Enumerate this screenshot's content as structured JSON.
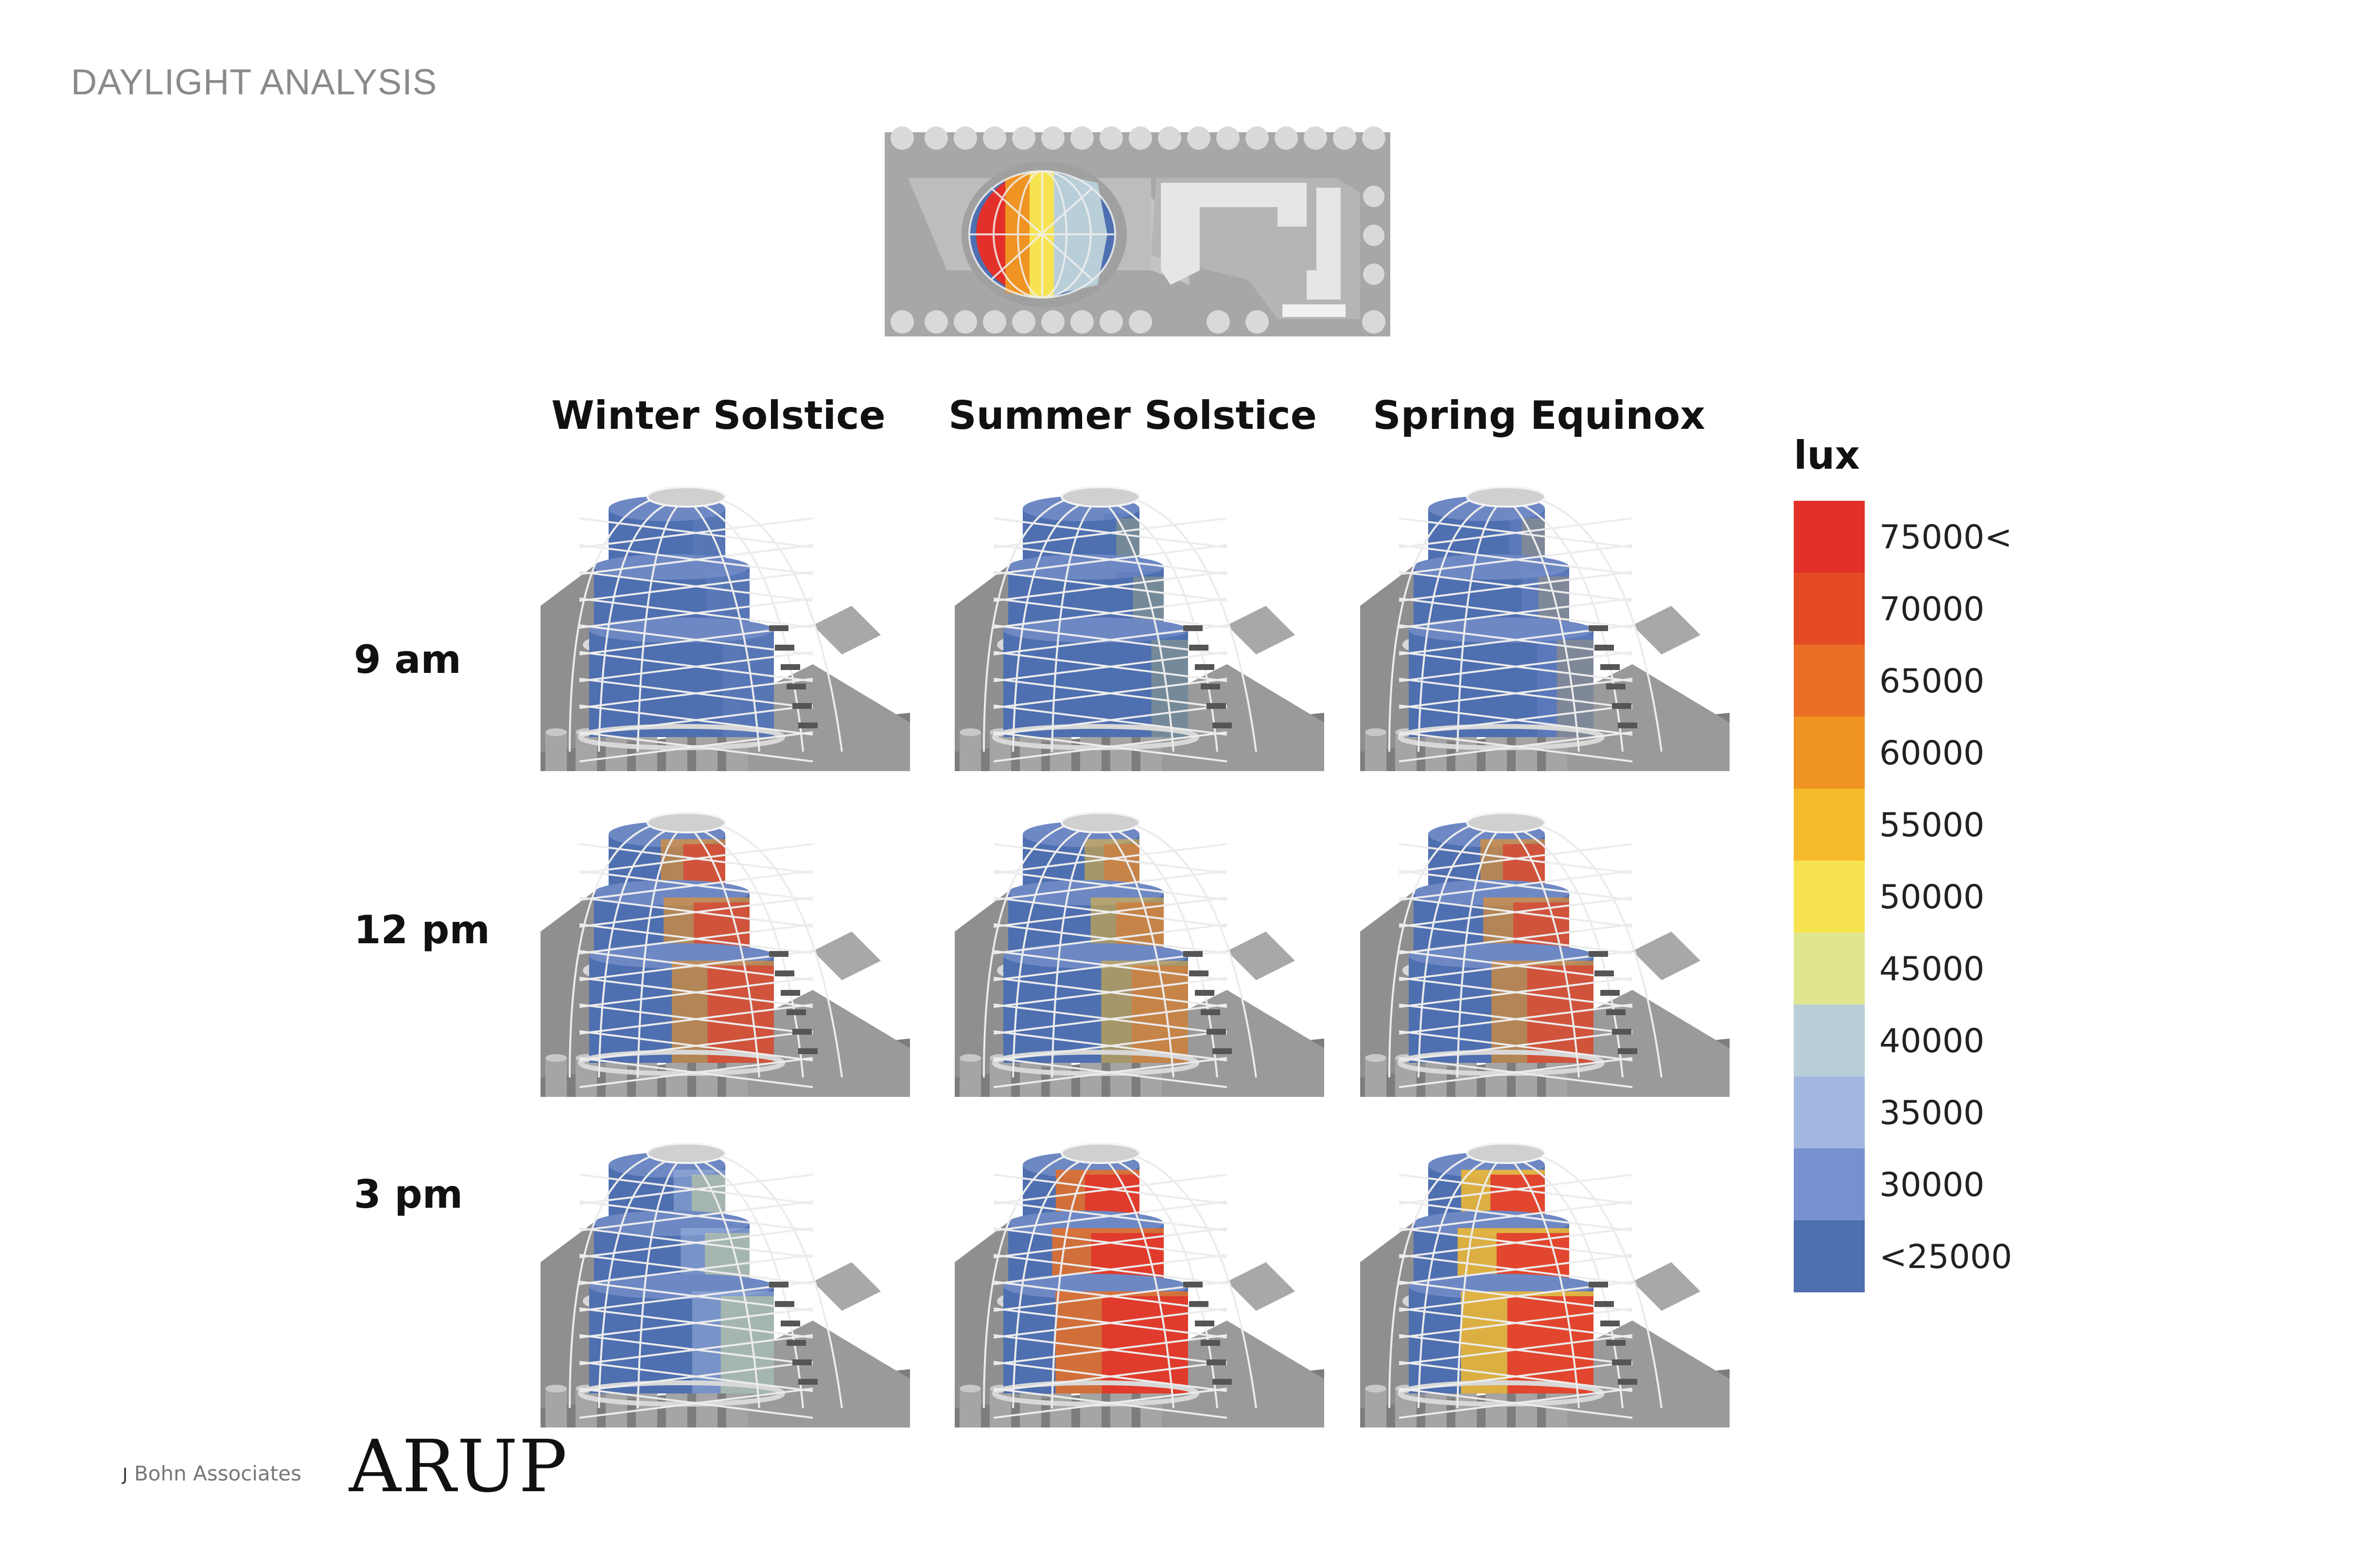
{
  "page_title": "DAYLIGHT ANALYSIS",
  "columns": [
    "Winter Solstice",
    "Summer Solstice",
    "Spring Equinox"
  ],
  "rows": [
    "9 am",
    "12 pm",
    "3 pm"
  ],
  "legend": {
    "unit": "lux",
    "steps": [
      {
        "label": "75000<",
        "color": "#e3302a"
      },
      {
        "label": "70000",
        "color": "#e44a23"
      },
      {
        "label": "65000",
        "color": "#ea6f24"
      },
      {
        "label": "60000",
        "color": "#ef9322"
      },
      {
        "label": "55000",
        "color": "#f5bb2c"
      },
      {
        "label": "50000",
        "color": "#f7e34f"
      },
      {
        "label": "45000",
        "color": "#e0e58f"
      },
      {
        "label": "40000",
        "color": "#b8ced8"
      },
      {
        "label": "35000",
        "color": "#a3b8e0"
      },
      {
        "label": "30000",
        "color": "#7790cf"
      },
      {
        "label": "<25000",
        "color": "#4e6fb0"
      }
    ]
  },
  "panels": [
    [
      {
        "hot": "#4e6fb0",
        "warm": "#7790cf",
        "intensity": 0.05
      },
      {
        "hot": "#f7e34f",
        "warm": "#4e6fb0",
        "intensity": 0.1
      },
      {
        "hot": "#f5bb2c",
        "warm": "#7790cf",
        "intensity": 0.1
      }
    ],
    [
      {
        "hot": "#e3302a",
        "warm": "#ef9322",
        "intensity": 0.55
      },
      {
        "hot": "#ea6f24",
        "warm": "#f5bb2c",
        "intensity": 0.4
      },
      {
        "hot": "#e3302a",
        "warm": "#ef9322",
        "intensity": 0.55
      }
    ],
    [
      {
        "hot": "#e0e58f",
        "warm": "#a3b8e0",
        "intensity": 0.35
      },
      {
        "hot": "#e3302a",
        "warm": "#ea6f24",
        "intensity": 0.85
      },
      {
        "hot": "#e3302a",
        "warm": "#f5bb2c",
        "intensity": 0.85
      }
    ]
  ],
  "footer": {
    "firm_initial": "J",
    "firm_name": "Bohn Associates",
    "logo_text": "ARUP"
  }
}
